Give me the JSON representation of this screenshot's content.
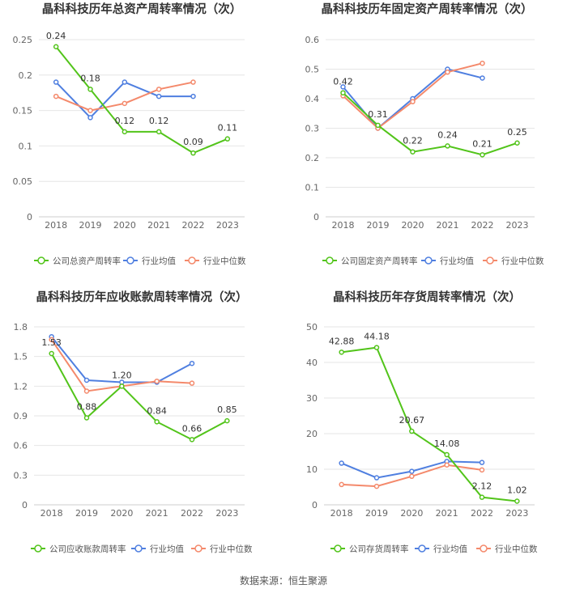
{
  "colors": {
    "company": "#52c41a",
    "industry_avg": "#4f7fe0",
    "industry_median": "#f4896b",
    "grid": "#e6e6e6",
    "text": "#666666",
    "title": "#333333"
  },
  "source": "数据来源：恒生聚源",
  "chart_data": [
    {
      "type": "line",
      "title": "晶科科技历年总资产周转率情况（次）",
      "categories": [
        "2018",
        "2019",
        "2020",
        "2021",
        "2022",
        "2023"
      ],
      "ylim": [
        0,
        0.25
      ],
      "yticks": [
        "0",
        "0.05",
        "0.1",
        "0.15",
        "0.2",
        "0.25"
      ],
      "series": [
        {
          "name": "公司总资产周转率",
          "key": "company",
          "values": [
            0.24,
            0.18,
            0.12,
            0.12,
            0.09,
            0.11
          ],
          "labels": [
            "0.24",
            "0.18",
            "0.12",
            "0.12",
            "0.09",
            "0.11"
          ]
        },
        {
          "name": "行业均值",
          "key": "industry_avg",
          "values": [
            0.19,
            0.14,
            0.19,
            0.17,
            0.17,
            null
          ]
        },
        {
          "name": "行业中位数",
          "key": "industry_median",
          "values": [
            0.17,
            0.15,
            0.16,
            0.18,
            0.19,
            null
          ]
        }
      ]
    },
    {
      "type": "line",
      "title": "晶科科技历年固定资产周转率情况（次）",
      "categories": [
        "2018",
        "2019",
        "2020",
        "2021",
        "2022",
        "2023"
      ],
      "ylim": [
        0,
        0.6
      ],
      "yticks": [
        "0",
        "0.1",
        "0.2",
        "0.3",
        "0.4",
        "0.5",
        "0.6"
      ],
      "series": [
        {
          "name": "公司固定资产周转率",
          "key": "company",
          "values": [
            0.42,
            0.31,
            0.22,
            0.24,
            0.21,
            0.25
          ],
          "labels": [
            "0.42",
            "0.31",
            "0.22",
            "0.24",
            "0.21",
            "0.25"
          ]
        },
        {
          "name": "行业均值",
          "key": "industry_avg",
          "values": [
            0.44,
            0.3,
            0.4,
            0.5,
            0.47,
            null
          ]
        },
        {
          "name": "行业中位数",
          "key": "industry_median",
          "values": [
            0.41,
            0.3,
            0.39,
            0.49,
            0.52,
            null
          ]
        }
      ]
    },
    {
      "type": "line",
      "title": "晶科科技历年应收账款周转率情况（次）",
      "categories": [
        "2018",
        "2019",
        "2020",
        "2021",
        "2022",
        "2023"
      ],
      "ylim": [
        0,
        1.8
      ],
      "yticks": [
        "0",
        "0.3",
        "0.6",
        "0.9",
        "1.2",
        "1.5",
        "1.8"
      ],
      "series": [
        {
          "name": "公司应收账款周转率",
          "key": "company",
          "values": [
            1.53,
            0.88,
            1.2,
            0.84,
            0.66,
            0.85
          ],
          "labels": [
            "1.53",
            "0.88",
            "1.20",
            "0.84",
            "0.66",
            "0.85"
          ]
        },
        {
          "name": "行业均值",
          "key": "industry_avg",
          "values": [
            1.7,
            1.26,
            1.24,
            1.24,
            1.43,
            null
          ]
        },
        {
          "name": "行业中位数",
          "key": "industry_median",
          "values": [
            1.67,
            1.15,
            1.2,
            1.25,
            1.23,
            null
          ]
        }
      ]
    },
    {
      "type": "line",
      "title": "晶科科技历年存货周转率情况（次）",
      "categories": [
        "2018",
        "2019",
        "2020",
        "2021",
        "2022",
        "2023"
      ],
      "ylim": [
        0,
        50
      ],
      "yticks": [
        "0",
        "10",
        "20",
        "30",
        "40",
        "50"
      ],
      "series": [
        {
          "name": "公司存货周转率",
          "key": "company",
          "values": [
            42.88,
            44.18,
            20.67,
            14.08,
            2.12,
            1.02
          ],
          "labels": [
            "42.88",
            "44.18",
            "20.67",
            "14.08",
            "2.12",
            "1.02"
          ]
        },
        {
          "name": "行业均值",
          "key": "industry_avg",
          "values": [
            11.7,
            7.6,
            9.4,
            12.2,
            11.9,
            null
          ]
        },
        {
          "name": "行业中位数",
          "key": "industry_median",
          "values": [
            5.7,
            5.2,
            8.0,
            11.2,
            9.8,
            null
          ]
        }
      ]
    }
  ]
}
